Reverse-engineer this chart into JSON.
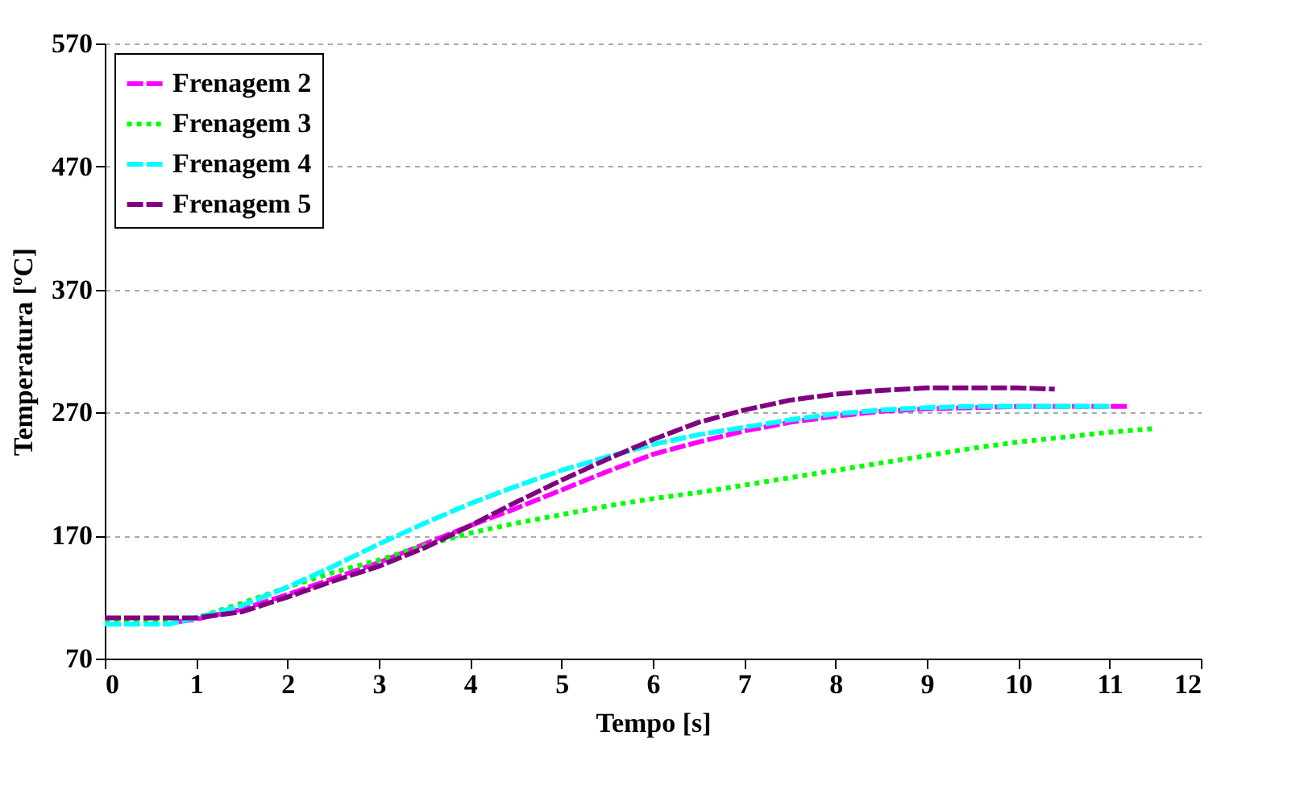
{
  "chart_data": {
    "type": "line",
    "xlabel": "Tempo [s]",
    "ylabel": "Temperatura [ºC]",
    "xlim": [
      0,
      12
    ],
    "xticks": [
      0,
      1,
      2,
      3,
      4,
      5,
      6,
      7,
      8,
      9,
      10,
      11,
      12
    ],
    "ylim": [
      70,
      570
    ],
    "yticks": [
      70,
      170,
      270,
      370,
      470,
      570
    ],
    "grid": "y",
    "legend": "top left",
    "series": [
      {
        "name": "Frenagem 2",
        "color": "#ff00ff",
        "line_style": "dashed",
        "x": [
          0.8,
          1,
          1.5,
          2,
          2.5,
          3,
          3.5,
          4,
          4.5,
          5,
          5.5,
          6,
          6.5,
          7,
          7.5,
          8,
          8.5,
          9,
          9.5,
          10,
          10.5,
          11,
          11.2
        ],
        "values": [
          100,
          102,
          110,
          122,
          135,
          148,
          163,
          178,
          192,
          207,
          222,
          236,
          246,
          255,
          262,
          267,
          271,
          273,
          274,
          275,
          275,
          275,
          275
        ]
      },
      {
        "name": "Frenagem 3",
        "color": "#00ff00",
        "line_style": "dotted",
        "x": [
          0,
          0.5,
          1,
          1.5,
          2,
          2.5,
          3,
          3.5,
          4,
          4.5,
          5,
          5.5,
          6,
          6.5,
          7,
          7.5,
          8,
          8.5,
          9,
          9.5,
          10,
          10.5,
          11,
          11.5
        ],
        "values": [
          100,
          100,
          103,
          115,
          128,
          140,
          150,
          162,
          172,
          180,
          187,
          194,
          200,
          205,
          211,
          217,
          223,
          229,
          235,
          241,
          246,
          250,
          254,
          257
        ]
      },
      {
        "name": "Frenagem 4",
        "color": "#00ffff",
        "line_style": "dashed",
        "x": [
          0,
          0.7,
          1,
          1.5,
          2,
          2.5,
          3,
          3.5,
          4,
          4.5,
          5,
          5.5,
          6,
          6.5,
          7,
          7.5,
          8,
          8.5,
          9,
          9.5,
          10,
          10.5,
          11
        ],
        "values": [
          98,
          98,
          103,
          113,
          128,
          145,
          163,
          180,
          196,
          210,
          223,
          234,
          244,
          252,
          258,
          264,
          269,
          272,
          274,
          275,
          275,
          275,
          275
        ]
      },
      {
        "name": "Frenagem 5",
        "color": "#800080",
        "line_style": "dashed",
        "x": [
          0,
          0.7,
          1,
          1.5,
          2,
          2.5,
          3,
          3.5,
          4,
          4.5,
          5,
          5.5,
          6,
          6.5,
          7,
          7.5,
          8,
          8.5,
          9,
          9.5,
          10,
          10.4
        ],
        "values": [
          103,
          103,
          103,
          108,
          120,
          133,
          145,
          160,
          178,
          197,
          215,
          232,
          248,
          262,
          272,
          280,
          285,
          288,
          290,
          290,
          290,
          289
        ]
      }
    ]
  }
}
